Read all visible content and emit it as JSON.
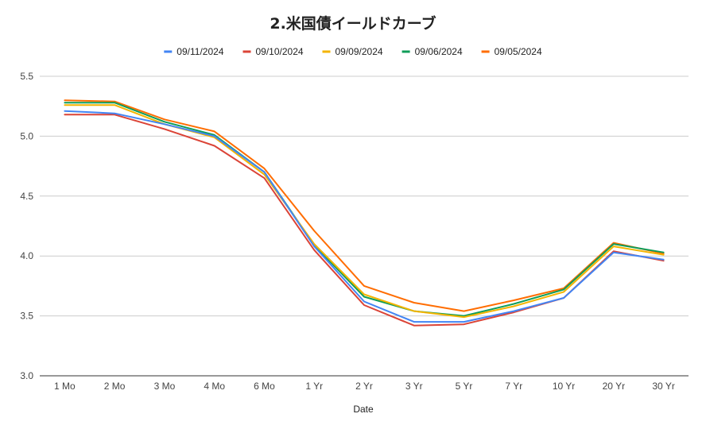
{
  "chart_data": {
    "type": "line",
    "title": "2.米国債イールドカーブ",
    "xlabel": "Date",
    "ylabel": "",
    "ylim": [
      3.0,
      5.5
    ],
    "yticks": [
      "3.0",
      "3.5",
      "4.0",
      "4.5",
      "5.0",
      "5.5"
    ],
    "grid": true,
    "legend_position": "top",
    "categories": [
      "1 Mo",
      "2 Mo",
      "3 Mo",
      "4 Mo",
      "6 Mo",
      "1 Yr",
      "2 Yr",
      "3 Yr",
      "5 Yr",
      "7 Yr",
      "10 Yr",
      "20 Yr",
      "30 Yr"
    ],
    "series": [
      {
        "name": "09/11/2024",
        "color": "#4285f4",
        "values": [
          5.21,
          5.19,
          5.1,
          5.0,
          4.7,
          4.08,
          3.62,
          3.45,
          3.45,
          3.54,
          3.65,
          4.03,
          3.97
        ]
      },
      {
        "name": "09/10/2024",
        "color": "#db4437",
        "values": [
          5.18,
          5.18,
          5.06,
          4.92,
          4.65,
          4.05,
          3.59,
          3.42,
          3.43,
          3.53,
          3.65,
          4.04,
          3.96
        ]
      },
      {
        "name": "09/09/2024",
        "color": "#f4b400",
        "values": [
          5.26,
          5.26,
          5.1,
          4.99,
          4.68,
          4.1,
          3.68,
          3.54,
          3.49,
          3.58,
          3.7,
          4.08,
          4.01
        ]
      },
      {
        "name": "09/06/2024",
        "color": "#0f9d58",
        "values": [
          5.28,
          5.28,
          5.12,
          5.01,
          4.7,
          4.09,
          3.66,
          3.54,
          3.5,
          3.6,
          3.72,
          4.1,
          4.03
        ]
      },
      {
        "name": "09/05/2024",
        "color": "#ff6d01",
        "values": [
          5.3,
          5.29,
          5.14,
          5.04,
          4.73,
          4.21,
          3.75,
          3.61,
          3.54,
          3.63,
          3.73,
          4.11,
          4.02
        ]
      }
    ]
  }
}
